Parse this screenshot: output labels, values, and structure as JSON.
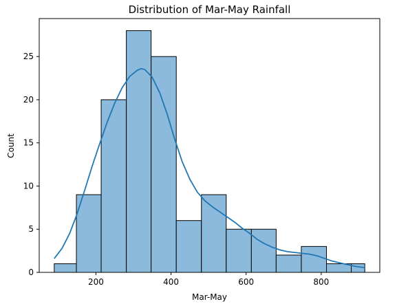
{
  "chart_data": {
    "type": "bar",
    "title": "Distribution of Mar-May Rainfall",
    "xlabel": "Mar-May",
    "ylabel": "Count",
    "xlim": [
      49,
      956
    ],
    "ylim": [
      0,
      29.4
    ],
    "x_ticks": [
      200,
      400,
      600,
      800
    ],
    "y_ticks": [
      0,
      5,
      10,
      15,
      20,
      25
    ],
    "bar_color": "#8bbadc",
    "edge_color": "#000000",
    "kde_color": "#1f77b4",
    "grid": false,
    "bins": [
      {
        "start": 89,
        "end": 148,
        "count": 1
      },
      {
        "start": 148,
        "end": 214,
        "count": 9
      },
      {
        "start": 214,
        "end": 281,
        "count": 20
      },
      {
        "start": 281,
        "end": 347,
        "count": 28
      },
      {
        "start": 347,
        "end": 414,
        "count": 25
      },
      {
        "start": 414,
        "end": 481,
        "count": 6
      },
      {
        "start": 481,
        "end": 547,
        "count": 9
      },
      {
        "start": 547,
        "end": 614,
        "count": 5
      },
      {
        "start": 614,
        "end": 680,
        "count": 5
      },
      {
        "start": 680,
        "end": 747,
        "count": 2
      },
      {
        "start": 747,
        "end": 814,
        "count": 3
      },
      {
        "start": 814,
        "end": 880,
        "count": 1
      },
      {
        "start": 880,
        "end": 916,
        "count": 1
      }
    ],
    "kde": {
      "x": [
        89,
        110,
        130,
        150,
        170,
        190,
        210,
        230,
        250,
        270,
        290,
        310,
        320,
        330,
        350,
        370,
        390,
        410,
        430,
        450,
        470,
        490,
        510,
        530,
        550,
        570,
        590,
        610,
        630,
        650,
        670,
        690,
        710,
        730,
        750,
        770,
        790,
        810,
        830,
        850,
        870,
        890,
        916
      ],
      "y": [
        1.6,
        2.8,
        4.5,
        6.8,
        9.5,
        12.3,
        14.9,
        17.4,
        19.6,
        21.4,
        22.7,
        23.4,
        23.6,
        23.5,
        22.6,
        20.8,
        18.3,
        15.4,
        12.8,
        10.8,
        9.3,
        8.3,
        7.6,
        7.0,
        6.4,
        5.8,
        5.1,
        4.5,
        3.8,
        3.3,
        2.9,
        2.6,
        2.4,
        2.3,
        2.2,
        2.1,
        1.9,
        1.6,
        1.3,
        1.1,
        0.9,
        0.7,
        0.55
      ]
    }
  }
}
